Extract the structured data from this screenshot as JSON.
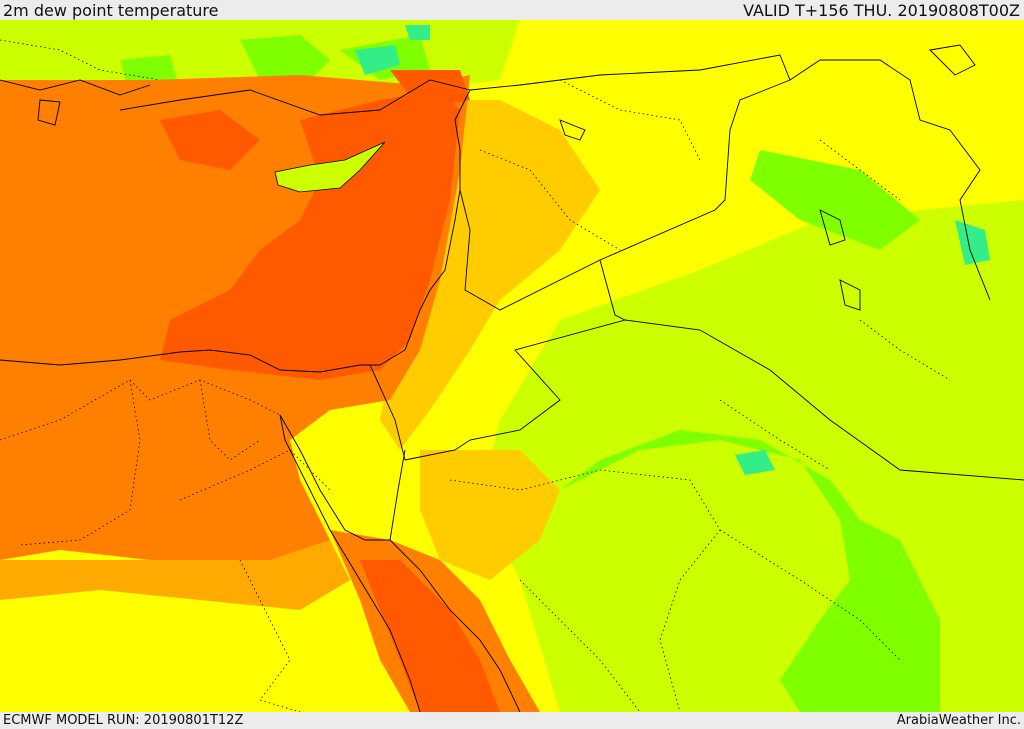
{
  "header": {
    "title": "2m dew point temperature",
    "valid": "VALID T+156 THU. 20190808T00Z"
  },
  "footer": {
    "model_run": "ECMWF MODEL RUN: 20190801T12Z",
    "credit": "ArabiaWeather Inc."
  },
  "palette": {
    "deep_orange": "#ff5a00",
    "orange": "#ff7f00",
    "light_orange": "#ffaa00",
    "amber": "#ffcc00",
    "yellow": "#ffff00",
    "yellow_green": "#ccff00",
    "green": "#80ff00",
    "teal": "#33ee88",
    "sea_green": "#22dd99"
  }
}
